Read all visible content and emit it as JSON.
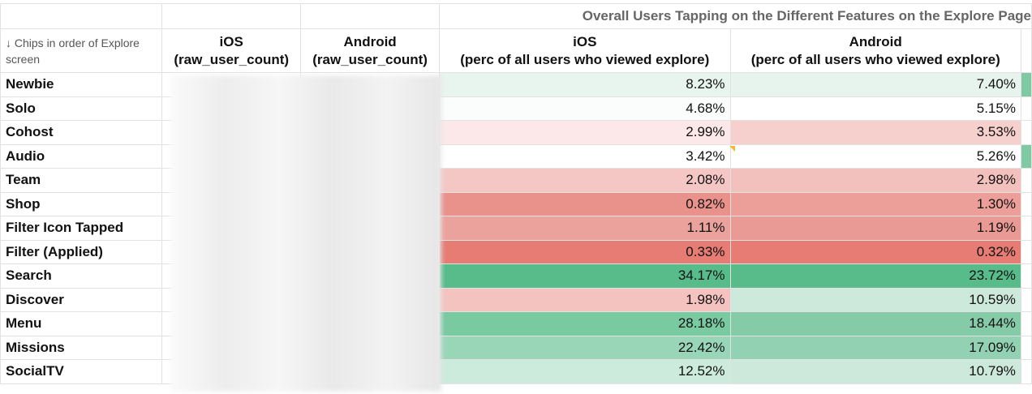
{
  "title": "Overall Users Tapping on the Different Features on the Explore Page",
  "headers": {
    "chips": "↓ Chips in order of Explore screen",
    "ios_raw": [
      "iOS",
      "(raw_user_count)"
    ],
    "android_raw": [
      "Android",
      "(raw_user_count)"
    ],
    "ios_perc": [
      "iOS",
      "(perc of all users who viewed explore)"
    ],
    "android_perc": [
      "Android",
      "(perc of all users who viewed explore)"
    ]
  },
  "rows": [
    {
      "name": "Newbie",
      "ios": "8.23%",
      "android": "7.40%",
      "ios_color": "#e8f5ee",
      "android_color": "#e6f4ed"
    },
    {
      "name": "Solo",
      "ios": "4.68%",
      "android": "5.15%",
      "ios_color": "#fbfdfc",
      "android_color": "#ffffff"
    },
    {
      "name": "Cohost",
      "ios": "2.99%",
      "android": "3.53%",
      "ios_color": "#fce8e8",
      "android_color": "#f5d0cd"
    },
    {
      "name": "Audio",
      "ios": "3.42%",
      "android": "5.26%",
      "ios_color": "#ffffff",
      "android_color": "#ffffff"
    },
    {
      "name": "Team",
      "ios": "2.08%",
      "android": "2.98%",
      "ios_color": "#f4c7c5",
      "android_color": "#f2c0bd"
    },
    {
      "name": "Shop",
      "ios": "0.82%",
      "android": "1.30%",
      "ios_color": "#e9928c",
      "android_color": "#ec9f99"
    },
    {
      "name": "Filter Icon Tapped",
      "ios": "1.11%",
      "android": "1.19%",
      "ios_color": "#eba29d",
      "android_color": "#ea9a94"
    },
    {
      "name": "Filter (Applied)",
      "ios": "0.33%",
      "android": "0.32%",
      "ios_color": "#e67c73",
      "android_color": "#e67c73"
    },
    {
      "name": "Search",
      "ios": "34.17%",
      "android": "23.72%",
      "ios_color": "#57bb8a",
      "android_color": "#57bb8a"
    },
    {
      "name": "Discover",
      "ios": "1.98%",
      "android": "10.59%",
      "ios_color": "#f4c3c0",
      "android_color": "#cde9dc"
    },
    {
      "name": "Menu",
      "ios": "28.18%",
      "android": "18.44%",
      "ios_color": "#79c9a1",
      "android_color": "#86cba8"
    },
    {
      "name": "Missions",
      "ios": "22.42%",
      "android": "17.09%",
      "ios_color": "#99d6b7",
      "android_color": "#92d2b2"
    },
    {
      "name": "SocialTV",
      "ios": "12.52%",
      "android": "10.79%",
      "ios_color": "#cdebdc",
      "android_color": "#cde9dc"
    }
  ],
  "edge_colors": [
    "#7fcaa3",
    "",
    "",
    "#7fcaa3",
    "",
    "",
    "",
    "",
    "",
    "",
    "",
    "",
    ""
  ]
}
